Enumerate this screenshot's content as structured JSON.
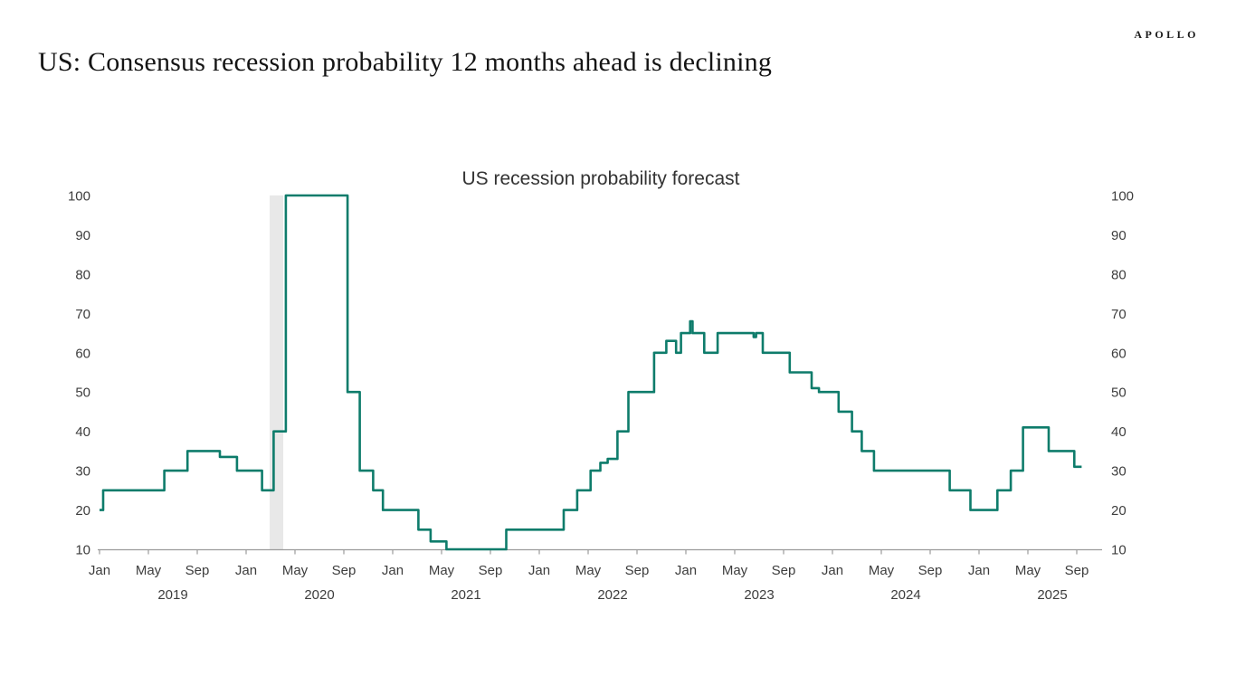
{
  "header": {
    "title": "US: Consensus recession probability 12 months ahead is declining",
    "logo": "APOLLO"
  },
  "chart_data": {
    "type": "line",
    "line_style": "step-after",
    "title": "US recession probability forecast",
    "xlabel": "",
    "ylabel": "",
    "grid": false,
    "legend": "none",
    "line_color": "#0e7c6b",
    "recession_band_color": "#e8e8e8",
    "axis_color": "#9b9b9b",
    "text_color": "#3d3d3d",
    "y_min": 10,
    "y_max": 100,
    "y_tick_step": 10,
    "y_tick_labels": [
      "100",
      "90",
      "80",
      "70",
      "60",
      "50",
      "40",
      "30",
      "20",
      "10"
    ],
    "y_axis_sides": [
      "left",
      "right"
    ],
    "x_start_label": "Jan 2019",
    "x_end_label": "Sep 2025",
    "x_tick_month_names": [
      "Jan",
      "May",
      "Sep"
    ],
    "x_tick_month_offsets": [
      0,
      4,
      8
    ],
    "x_years": [
      "2019",
      "2020",
      "2021",
      "2022",
      "2023",
      "2024",
      "2025"
    ],
    "month_offset_epoch": "2019-01",
    "recession_band_months": [
      13.93,
      15.04
    ],
    "end_month_offset": 80.4,
    "series": [
      {
        "name": "US recession probability forecast",
        "points_month_offset_value": [
          [
            0.0,
            20
          ],
          [
            0.3,
            25
          ],
          [
            5.3,
            30
          ],
          [
            7.2,
            35
          ],
          [
            9.85,
            33.5
          ],
          [
            11.25,
            30
          ],
          [
            13.3,
            25
          ],
          [
            14.25,
            40
          ],
          [
            15.25,
            100
          ],
          [
            20.3,
            50
          ],
          [
            21.3,
            30
          ],
          [
            22.4,
            25
          ],
          [
            23.2,
            20
          ],
          [
            26.1,
            15
          ],
          [
            27.1,
            12
          ],
          [
            28.4,
            10
          ],
          [
            33.3,
            15
          ],
          [
            38.0,
            20
          ],
          [
            39.1,
            25
          ],
          [
            40.2,
            30
          ],
          [
            41.0,
            32
          ],
          [
            41.6,
            33
          ],
          [
            42.4,
            40
          ],
          [
            43.3,
            50
          ],
          [
            45.4,
            60
          ],
          [
            46.4,
            63
          ],
          [
            47.2,
            60
          ],
          [
            47.6,
            65
          ],
          [
            48.35,
            68
          ],
          [
            48.55,
            65
          ],
          [
            49.5,
            60
          ],
          [
            50.6,
            65
          ],
          [
            53.55,
            64
          ],
          [
            53.75,
            65
          ],
          [
            54.3,
            60
          ],
          [
            56.5,
            55
          ],
          [
            58.3,
            51
          ],
          [
            58.9,
            50
          ],
          [
            60.5,
            45
          ],
          [
            61.6,
            40
          ],
          [
            62.4,
            35
          ],
          [
            63.4,
            30
          ],
          [
            69.6,
            25
          ],
          [
            71.3,
            20
          ],
          [
            73.5,
            25
          ],
          [
            74.6,
            30
          ],
          [
            75.6,
            41
          ],
          [
            77.7,
            35
          ],
          [
            79.8,
            31
          ]
        ]
      }
    ]
  }
}
